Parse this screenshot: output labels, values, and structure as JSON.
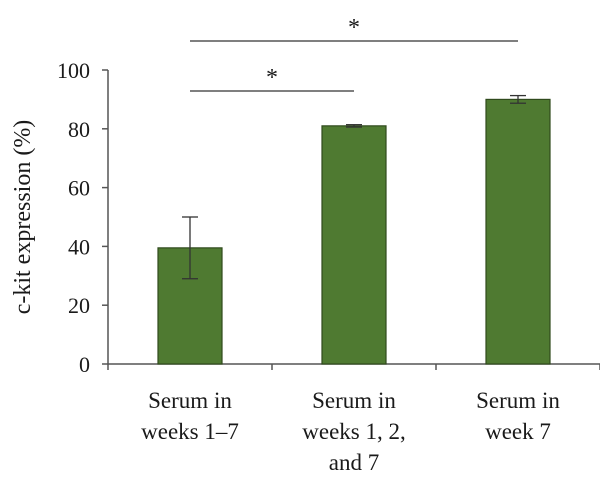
{
  "chart_data": {
    "type": "bar",
    "categories": [
      [
        "Serum in",
        "weeks 1–7"
      ],
      [
        "Serum in",
        "weeks 1, 2,",
        "and 7"
      ],
      [
        "Serum in",
        "week 7"
      ]
    ],
    "values": [
      39.5,
      81,
      90
    ],
    "errors": [
      10.5,
      0.4,
      1.3
    ],
    "ylabel": "c-kit expression (%)",
    "xlabel": "",
    "ylim": [
      0,
      100
    ],
    "yticks": [
      0,
      20,
      40,
      60,
      80,
      100
    ],
    "grid": false,
    "bar_color": "#4f7a31",
    "bar_edge_color": "#2f4a1c",
    "significance": [
      {
        "from": 0,
        "to": 2,
        "label": "*",
        "level": 2
      },
      {
        "from": 0,
        "to": 1,
        "label": "*",
        "level": 1
      }
    ]
  }
}
